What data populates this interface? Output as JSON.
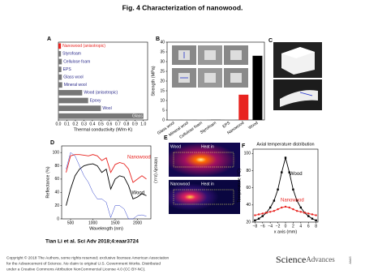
{
  "title": "Fig. 4 Characterization of nanowood.",
  "chart_data": [
    {
      "type": "hbar",
      "label": "A",
      "xlabel": "Thermal conductivity (W/m·K)",
      "categories": [
        "Nanowood (anisotropic)",
        "Styrofoam",
        "Cellulose foam",
        "EPS",
        "Glass wool",
        "Mineral wool",
        "Wood (anisotropic)",
        "Epoxy",
        "Wool",
        "Glass"
      ],
      "values": [
        0.03,
        0.03,
        0.04,
        0.035,
        0.04,
        0.045,
        0.28,
        0.35,
        0.5,
        1.0
      ],
      "colors": [
        "#e8231f",
        "#777777",
        "#777777",
        "#777777",
        "#777777",
        "#777777",
        "#777777",
        "#777777",
        "#777777",
        "#777777"
      ],
      "xlim": [
        0,
        1.05
      ],
      "xticks": [
        {
          "value": 0,
          "label": "0.0"
        },
        0.1,
        0.2,
        0.3,
        0.4,
        0.5,
        0.6,
        0.7,
        0.8,
        0.9,
        {
          "value": 1,
          "label": "1.0"
        }
      ]
    },
    {
      "type": "bar",
      "label": "B",
      "ylabel": "Strength (MPa)",
      "categories": [
        "Glass wool",
        "Mineral wool",
        "Cellulose foam",
        "Styrofoam",
        "EPS",
        "Nanowood",
        "Wood"
      ],
      "values": [
        0.1,
        0.1,
        0.2,
        0.3,
        0.2,
        13,
        33
      ],
      "colors": [
        "#777777",
        "#777777",
        "#777777",
        "#777777",
        "#777777",
        "#e8231f",
        "#000000"
      ],
      "ylim": [
        0,
        40
      ],
      "yticks": [
        0,
        5,
        10,
        15,
        20,
        25,
        30,
        35,
        40
      ]
    },
    {
      "type": "line",
      "label": "D",
      "xlabel": "Wavelength (nm)",
      "ylabel": "Reflectance (%)",
      "y2label": "Intensity (a.u.)",
      "x": [
        400,
        500,
        600,
        700,
        800,
        900,
        1000,
        1100,
        1200,
        1300,
        1400,
        1500,
        1600,
        1700,
        1800,
        1900,
        2000,
        2100,
        2200
      ],
      "series": [
        {
          "name": "Nanowood",
          "color": "#e8231f",
          "values": [
            70,
            95,
            97,
            97,
            96,
            95,
            97,
            95,
            88,
            92,
            70,
            82,
            85,
            83,
            75,
            55,
            60,
            65,
            60
          ]
        },
        {
          "name": "Wood",
          "color": "#000000",
          "values": [
            20,
            45,
            65,
            75,
            80,
            82,
            83,
            80,
            70,
            75,
            45,
            60,
            65,
            63,
            50,
            30,
            33,
            38,
            35
          ]
        },
        {
          "color": "#3344cc",
          "axis": "y2",
          "values": [
            0.75,
            1,
            0.95,
            0.8,
            0.65,
            0.55,
            0.4,
            0.3,
            0.3,
            0.25,
            0.02,
            0.2,
            0.2,
            0.15,
            0,
            0,
            0.05,
            0.06,
            0.04
          ]
        }
      ],
      "xlim": [
        300,
        2300
      ],
      "xticks": [
        500,
        1000,
        1500,
        2000
      ],
      "ylim": [
        0,
        110
      ],
      "yticks": [
        0,
        20,
        40,
        60,
        80,
        100
      ],
      "y2lim": [
        0,
        1.1
      ]
    },
    {
      "type": "line",
      "label": "F",
      "title": "Axial temperature distribution",
      "xlabel": "x axis (mm)",
      "ylabel": "Temperature (°C)",
      "x": [
        -8,
        -7,
        -6,
        -5,
        -4,
        -3,
        -2,
        -1,
        0,
        1,
        2,
        3,
        4,
        5,
        6,
        7,
        8
      ],
      "series": [
        {
          "name": "Wood",
          "color": "#000000",
          "marker": "square",
          "values": [
            22,
            24,
            27,
            31,
            37,
            45,
            58,
            78,
            95,
            78,
            58,
            45,
            37,
            31,
            27,
            24,
            22
          ]
        },
        {
          "name": "Nanowood",
          "color": "#e8231f",
          "marker": "circle",
          "values": [
            28,
            29,
            30,
            31,
            32,
            33,
            35,
            37,
            38,
            37,
            35,
            33,
            32,
            31,
            30,
            29,
            28
          ]
        }
      ],
      "xlim": [
        -8.5,
        8.5
      ],
      "xticks": [
        {
          "value": -8,
          "label": "−8"
        },
        {
          "value": -6,
          "label": "−6"
        },
        {
          "value": -4,
          "label": "−4"
        },
        {
          "value": -2,
          "label": "−2"
        },
        0,
        2,
        4,
        6,
        8
      ],
      "ylim": [
        20,
        105
      ],
      "yticks": [
        20,
        40,
        60,
        80,
        100
      ]
    }
  ],
  "panel_c": {
    "label": "C"
  },
  "panel_e": {
    "label": "E",
    "texts": [
      "Wood",
      "Heat in",
      "Nanowood",
      "Heat in"
    ]
  },
  "citation": "Tian Li et al. Sci Adv 2018;4:eaar3724",
  "copyright": [
    "Copyright © 2018 The Authors, some rights reserved; exclusive licensee American Association",
    "for the Advancement of Science. No claim to original U.S. Government Works. Distributed",
    "under a Creative Commons Attribution NonCommercial License 4.0 (CC BY-NC)."
  ],
  "logo": [
    "Science",
    "Advances",
    "AAAS"
  ]
}
